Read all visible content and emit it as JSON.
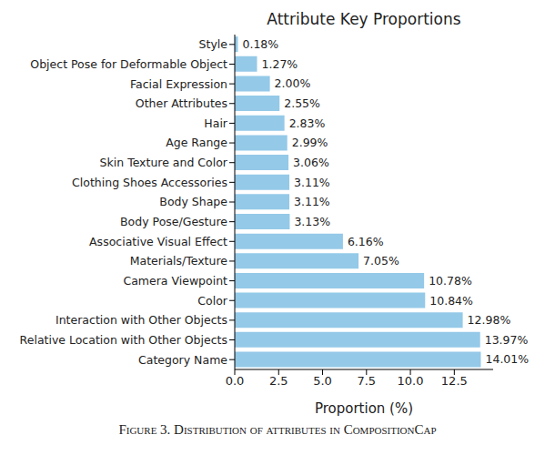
{
  "chart_data": {
    "type": "bar",
    "orientation": "horizontal",
    "title": "Attribute Key Proportions",
    "x_label": "Proportion (%)",
    "categories": [
      "Style",
      "Object Pose for Deformable Object",
      "Facial Expression",
      "Other Attributes",
      "Hair",
      "Age Range",
      "Skin Texture and Color",
      "Clothing Shoes Accessories",
      "Body Shape",
      "Body Pose/Gesture",
      "Associative Visual Effect",
      "Materials/Texture",
      "Camera Viewpoint",
      "Color",
      "Interaction with Other Objects",
      "Relative Location with Other Objects",
      "Category Name"
    ],
    "values": [
      0.18,
      1.27,
      2.0,
      2.55,
      2.83,
      2.99,
      3.06,
      3.11,
      3.11,
      3.13,
      6.16,
      7.05,
      10.78,
      10.84,
      12.98,
      13.97,
      14.01
    ],
    "value_labels": [
      "0.18%",
      "1.27%",
      "2.00%",
      "2.55%",
      "2.83%",
      "2.99%",
      "3.06%",
      "3.11%",
      "3.11%",
      "3.13%",
      "6.16%",
      "7.05%",
      "10.78%",
      "10.84%",
      "12.98%",
      "13.97%",
      "14.01%"
    ],
    "color": "#94c9e8",
    "xlim": [
      0,
      14.71
    ],
    "xticks": [
      {
        "value": 0,
        "label": "0.0"
      },
      2.5,
      {
        "value": 5,
        "label": "5.0"
      },
      7.5,
      {
        "value": 10,
        "label": "10.0"
      },
      12.5
    ],
    "grid": false,
    "data_labels": true
  },
  "caption": "Figure 3. Distribution of attributes in CompositionCap"
}
